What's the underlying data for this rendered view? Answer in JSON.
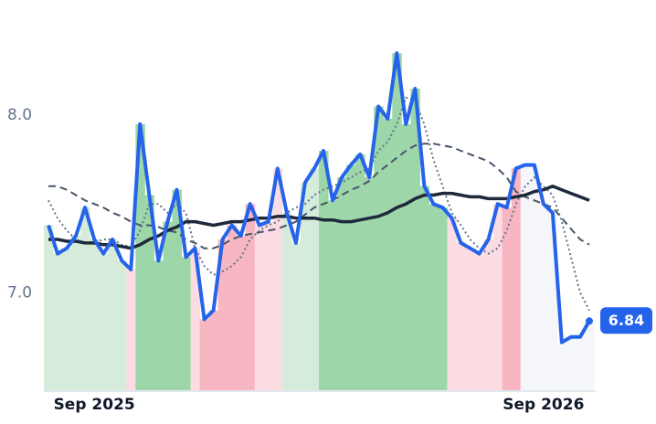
{
  "chart_data": {
    "type": "line",
    "categories": [
      null,
      null,
      null,
      null,
      null,
      "Sep 2025",
      null,
      null,
      null,
      null,
      null,
      null,
      null,
      null,
      null,
      null,
      null,
      null,
      null,
      null,
      null,
      null,
      null,
      null,
      null,
      null,
      null,
      null,
      null,
      null,
      null,
      null,
      null,
      null,
      null,
      null,
      null,
      null,
      null,
      null,
      null,
      null,
      null,
      null,
      null,
      null,
      null,
      null,
      null,
      null,
      null,
      null,
      null,
      null,
      "Sep 2026",
      null,
      null,
      null,
      null,
      null
    ],
    "series": [
      {
        "color": "#2563eb",
        "values": [
          7.38,
          7.22,
          7.25,
          7.32,
          7.48,
          7.3,
          7.22,
          7.3,
          7.18,
          7.13,
          7.95,
          7.55,
          7.18,
          7.4,
          7.58,
          7.2,
          7.25,
          6.85,
          6.9,
          7.3,
          7.38,
          7.32,
          7.5,
          7.38,
          7.4,
          7.7,
          7.45,
          7.28,
          7.62,
          7.7,
          7.8,
          7.52,
          7.65,
          7.72,
          7.78,
          7.65,
          8.05,
          7.98,
          8.35,
          7.95,
          8.15,
          7.6,
          7.5,
          7.48,
          7.42,
          7.28,
          7.25,
          7.22,
          7.3,
          7.5,
          7.48,
          7.7,
          7.72,
          7.72,
          7.5,
          7.45,
          6.72,
          6.75,
          6.75,
          6.84
        ],
        "bar_colors": [
          "#d4ecd9",
          "#d4ecd9",
          "#d4ecd9",
          "#d4ecd9",
          "#d4ecd9",
          "#d4ecd9",
          "#d4ecd9",
          "#d4ecd9",
          "#d4ecd9",
          "#fcdce3",
          "#9dd6a9",
          "#9dd6a9",
          "#9dd6a9",
          "#9dd6a9",
          "#9dd6a9",
          "#9dd6a9",
          "#fcdce3",
          "#f7b6c2",
          "#f7b6c2",
          "#f7b6c2",
          "#f7b6c2",
          "#f7b6c2",
          "#f7b6c2",
          "#fcdce3",
          "#fcdce3",
          "#fcdce3",
          "#d4ecd9",
          "#d4ecd9",
          "#d4ecd9",
          "#d4ecd9",
          "#9dd6a9",
          "#9dd6a9",
          "#9dd6a9",
          "#9dd6a9",
          "#9dd6a9",
          "#9dd6a9",
          "#9dd6a9",
          "#9dd6a9",
          "#9dd6a9",
          "#9dd6a9",
          "#9dd6a9",
          "#9dd6a9",
          "#9dd6a9",
          "#9dd6a9",
          "#fcdce3",
          "#fcdce3",
          "#fcdce3",
          "#fcdce3",
          "#fcdce3",
          "#fcdce3",
          "#f7b6c2",
          "#f7b6c2",
          "#f4f6f9",
          "#f4f6f9",
          "#f4f6f9",
          "#f4f6f9",
          "#f4f6f9",
          "#f4f6f9",
          "#f4f6f9",
          "#f4f6f9"
        ]
      },
      {
        "color": "#1e293b",
        "values": [
          7.3,
          7.3,
          7.29,
          7.29,
          7.28,
          7.28,
          7.27,
          7.27,
          7.26,
          7.25,
          7.27,
          7.3,
          7.32,
          7.35,
          7.37,
          7.4,
          7.4,
          7.39,
          7.38,
          7.39,
          7.4,
          7.4,
          7.41,
          7.42,
          7.42,
          7.43,
          7.43,
          7.42,
          7.42,
          7.42,
          7.41,
          7.41,
          7.4,
          7.4,
          7.41,
          7.42,
          7.43,
          7.45,
          7.48,
          7.5,
          7.53,
          7.55,
          7.55,
          7.56,
          7.56,
          7.55,
          7.54,
          7.54,
          7.53,
          7.53,
          7.53,
          7.54,
          7.55,
          7.57,
          7.58,
          7.6,
          7.58,
          7.56,
          7.54,
          7.52
        ]
      },
      {
        "color": "#475569",
        "dash": "8 5",
        "values": [
          7.6,
          7.6,
          7.58,
          7.55,
          7.52,
          7.5,
          7.48,
          7.45,
          7.43,
          7.4,
          7.38,
          7.38,
          7.37,
          7.35,
          7.34,
          7.3,
          7.28,
          7.25,
          7.25,
          7.27,
          7.3,
          7.32,
          7.33,
          7.34,
          7.35,
          7.36,
          7.38,
          7.4,
          7.44,
          7.48,
          7.5,
          7.52,
          7.55,
          7.58,
          7.6,
          7.63,
          7.68,
          7.72,
          7.76,
          7.8,
          7.83,
          7.84,
          7.84,
          7.83,
          7.82,
          7.8,
          7.78,
          7.76,
          7.74,
          7.7,
          7.65,
          7.57,
          7.54,
          7.52,
          7.5,
          7.48,
          7.42,
          7.36,
          7.3,
          7.27
        ]
      },
      {
        "color": "#64748b",
        "dash": "2 3",
        "values": [
          7.52,
          7.42,
          7.35,
          7.3,
          7.28,
          7.28,
          7.3,
          7.3,
          7.27,
          7.26,
          7.35,
          7.5,
          7.5,
          7.45,
          7.5,
          7.45,
          7.25,
          7.15,
          7.1,
          7.12,
          7.15,
          7.2,
          7.3,
          7.35,
          7.38,
          7.4,
          7.45,
          7.48,
          7.5,
          7.55,
          7.58,
          7.6,
          7.62,
          7.65,
          7.68,
          7.7,
          7.8,
          7.85,
          7.95,
          8.1,
          8.08,
          7.95,
          7.75,
          7.6,
          7.45,
          7.38,
          7.3,
          7.25,
          7.22,
          7.25,
          7.35,
          7.5,
          7.6,
          7.65,
          7.6,
          7.55,
          7.4,
          7.2,
          7.0,
          6.9
        ]
      }
    ],
    "ylim": [
      6.45,
      8.65
    ],
    "yticks": [
      {
        "value": 7,
        "label": "7.0"
      },
      {
        "value": 8,
        "label": "8.0"
      }
    ]
  }
}
